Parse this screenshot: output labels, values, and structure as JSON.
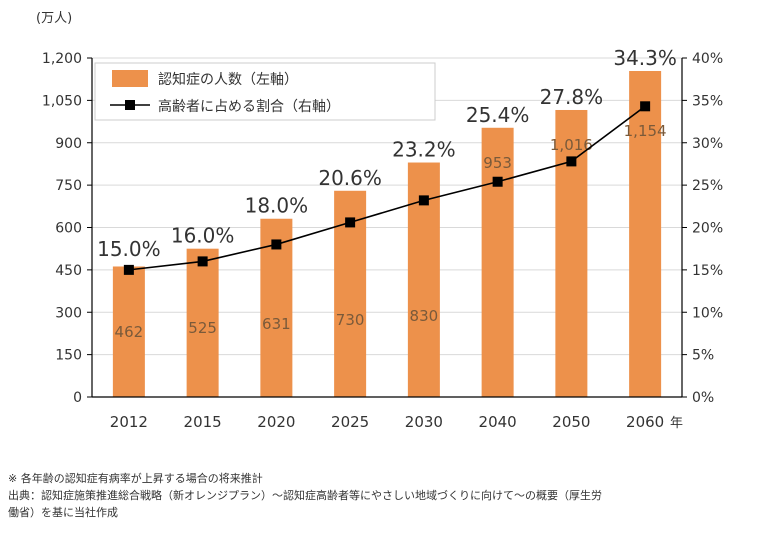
{
  "chart_data": {
    "type": "bar",
    "categories": [
      "2012",
      "2015",
      "2020",
      "2025",
      "2030",
      "2040",
      "2050",
      "2060"
    ],
    "series": [
      {
        "name": "認知症の人数（左軸）",
        "axis": "left",
        "type": "bar",
        "values": [
          462,
          525,
          631,
          730,
          830,
          953,
          1016,
          1154
        ],
        "labels": [
          "462",
          "525",
          "631",
          "730",
          "830",
          "953",
          "1,016",
          "1,154"
        ]
      },
      {
        "name": "高齢者に占める割合（右軸）",
        "axis": "right",
        "type": "line",
        "values": [
          15.0,
          16.0,
          18.0,
          20.6,
          23.2,
          25.4,
          27.8,
          34.3
        ],
        "labels": [
          "15.0%",
          "16.0%",
          "18.0%",
          "20.6%",
          "23.2%",
          "25.4%",
          "27.8%",
          "34.3%"
        ]
      }
    ],
    "left_axis": {
      "unit_label": "(万人)",
      "ylim": [
        0,
        1200
      ],
      "ticks": [
        0,
        150,
        300,
        450,
        600,
        750,
        900,
        1050,
        1200
      ],
      "tick_labels": [
        "0",
        "150",
        "300",
        "450",
        "600",
        "750",
        "900",
        "1,050",
        "1,200"
      ]
    },
    "right_axis": {
      "ylim": [
        0,
        40
      ],
      "ticks": [
        0,
        5,
        10,
        15,
        20,
        25,
        30,
        35,
        40
      ],
      "tick_labels": [
        "0%",
        "5%",
        "10%",
        "15%",
        "20%",
        "25%",
        "30%",
        "35%",
        "40%"
      ]
    },
    "x_unit_label": "年",
    "grid": true,
    "legend_position": "top-left",
    "colors": {
      "bar": "#ED914B",
      "line": "#000000",
      "grid": "#d9d9d9",
      "axis": "#000000"
    }
  },
  "notes": {
    "line1": "※ 各年齢の認知症有病率が上昇する場合の将来推計",
    "line2": "出典：認知症施策推進総合戦略（新オレンジプラン）～認知症高齢者等にやさしい地域づくりに向けて～の概要（厚生労",
    "line3": "働省）を基に当社作成"
  }
}
